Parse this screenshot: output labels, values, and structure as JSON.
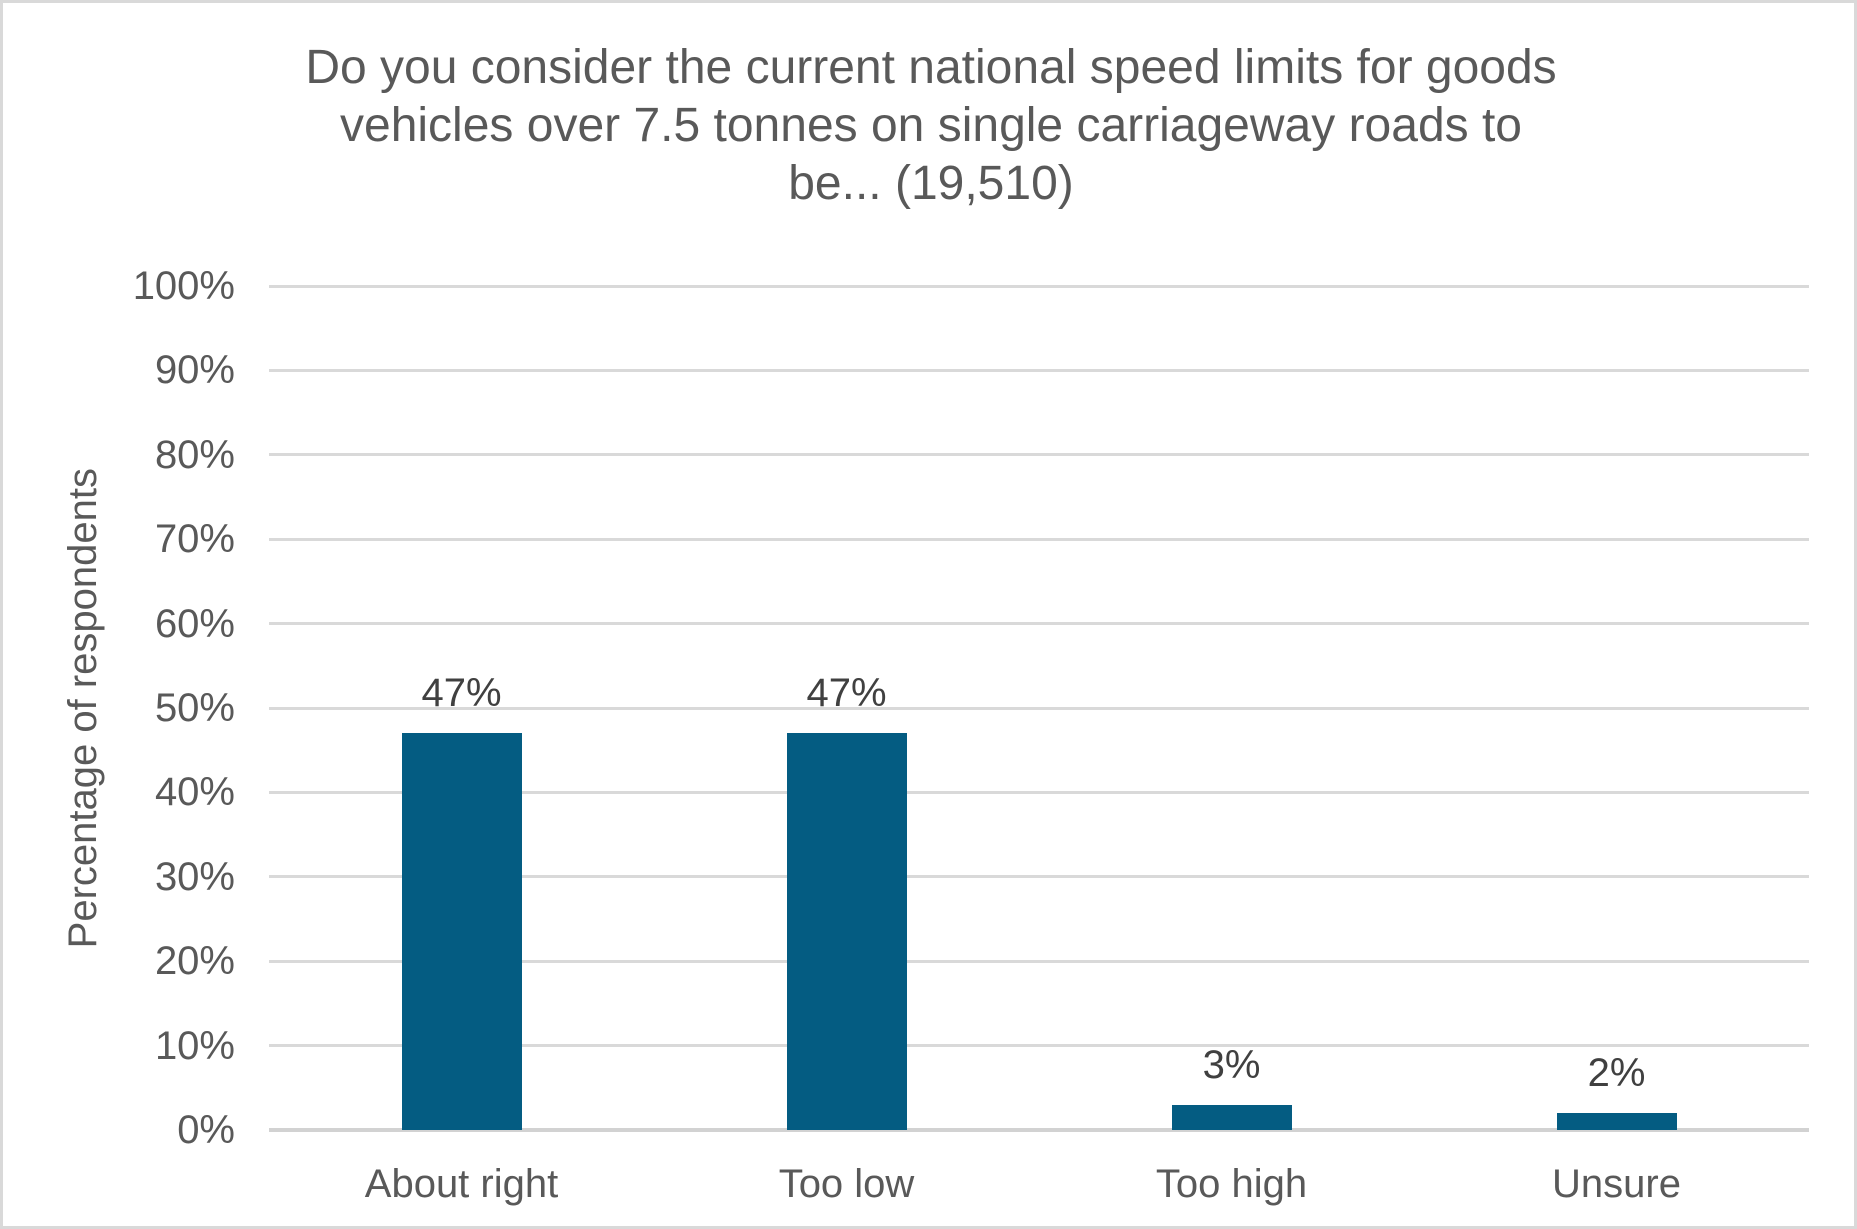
{
  "chart_data": {
    "type": "bar",
    "title": "Do you consider the current national speed limits for goods vehicles over 7.5 tonnes on single carriageway roads to be... (19,510)",
    "title_lines": [
      "Do you consider the current national speed limits for goods",
      "vehicles over 7.5 tonnes on single carriageway roads to",
      "be... (19,510)"
    ],
    "ylabel": "Percentage of respondents",
    "xlabel": "",
    "categories": [
      "About right",
      "Too low",
      "Too high",
      "Unsure"
    ],
    "values": [
      47,
      47,
      3,
      2
    ],
    "value_labels": [
      "47%",
      "47%",
      "3%",
      "2%"
    ],
    "ylim": [
      0,
      100
    ],
    "ytick_step": 10,
    "ytick_labels": [
      "0%",
      "10%",
      "20%",
      "30%",
      "40%",
      "50%",
      "60%",
      "70%",
      "80%",
      "90%",
      "100%"
    ],
    "grid": "horizontal",
    "legend": "none",
    "colors": {
      "bar": "#045c82",
      "gridline": "#d9d9d9",
      "axis_line": "#d2d2d2",
      "title_text": "#595959",
      "axis_text": "#595959",
      "data_label_text": "#404040",
      "frame_border": "#d9d9d9",
      "background": "#ffffff"
    }
  }
}
